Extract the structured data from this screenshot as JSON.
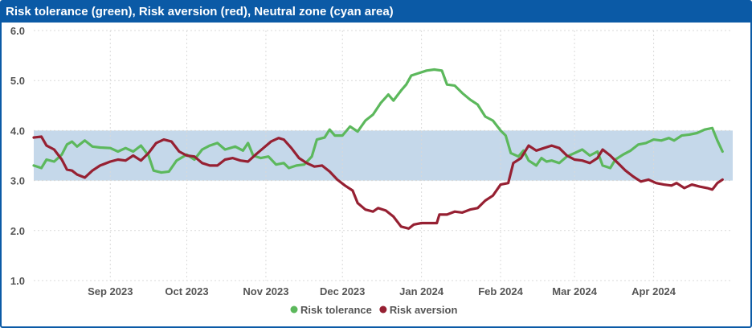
{
  "chart_data": {
    "type": "line",
    "title": "Risk tolerance (green), Risk aversion (red), Neutral zone (cyan area)",
    "ylim": [
      1.0,
      6.0
    ],
    "yticks": [
      "1.0",
      "2.0",
      "3.0",
      "4.0",
      "5.0",
      "6.0"
    ],
    "xlim": [
      "2023-08-02",
      "2024-05-02"
    ],
    "xticks": [
      {
        "date": "2023-09-01",
        "label": "Sep 2023"
      },
      {
        "date": "2023-10-01",
        "label": "Oct 2023"
      },
      {
        "date": "2023-11-01",
        "label": "Nov 2023"
      },
      {
        "date": "2023-12-01",
        "label": "Dec 2023"
      },
      {
        "date": "2024-01-01",
        "label": "Jan 2024"
      },
      {
        "date": "2024-02-01",
        "label": "Feb 2024"
      },
      {
        "date": "2024-03-01",
        "label": "Mar 2024"
      },
      {
        "date": "2024-04-01",
        "label": "Apr 2024"
      }
    ],
    "band": {
      "from": 3.0,
      "to": 4.0,
      "color": "#c5d8ea"
    },
    "grid": true,
    "legend": "bottom-center",
    "series": [
      {
        "name": "Risk tolerance",
        "color": "#5cb85c",
        "points": [
          [
            "2023-08-02",
            3.3
          ],
          [
            "2023-08-05",
            3.25
          ],
          [
            "2023-08-07",
            3.42
          ],
          [
            "2023-08-10",
            3.38
          ],
          [
            "2023-08-13",
            3.52
          ],
          [
            "2023-08-15",
            3.72
          ],
          [
            "2023-08-17",
            3.78
          ],
          [
            "2023-08-19",
            3.68
          ],
          [
            "2023-08-22",
            3.8
          ],
          [
            "2023-08-25",
            3.68
          ],
          [
            "2023-08-28",
            3.66
          ],
          [
            "2023-09-01",
            3.65
          ],
          [
            "2023-09-04",
            3.58
          ],
          [
            "2023-09-07",
            3.65
          ],
          [
            "2023-09-10",
            3.58
          ],
          [
            "2023-09-13",
            3.7
          ],
          [
            "2023-09-16",
            3.5
          ],
          [
            "2023-09-18",
            3.2
          ],
          [
            "2023-09-21",
            3.16
          ],
          [
            "2023-09-24",
            3.18
          ],
          [
            "2023-09-27",
            3.4
          ],
          [
            "2023-10-01",
            3.52
          ],
          [
            "2023-10-04",
            3.42
          ],
          [
            "2023-10-07",
            3.62
          ],
          [
            "2023-10-10",
            3.7
          ],
          [
            "2023-10-13",
            3.75
          ],
          [
            "2023-10-16",
            3.62
          ],
          [
            "2023-10-20",
            3.68
          ],
          [
            "2023-10-23",
            3.6
          ],
          [
            "2023-10-25",
            3.75
          ],
          [
            "2023-10-27",
            3.5
          ],
          [
            "2023-10-30",
            3.45
          ],
          [
            "2023-11-02",
            3.48
          ],
          [
            "2023-11-05",
            3.32
          ],
          [
            "2023-11-08",
            3.35
          ],
          [
            "2023-11-10",
            3.25
          ],
          [
            "2023-11-13",
            3.3
          ],
          [
            "2023-11-16",
            3.32
          ],
          [
            "2023-11-19",
            3.48
          ],
          [
            "2023-11-21",
            3.82
          ],
          [
            "2023-11-24",
            3.86
          ],
          [
            "2023-11-26",
            4.02
          ],
          [
            "2023-11-28",
            3.9
          ],
          [
            "2023-12-01",
            3.9
          ],
          [
            "2023-12-04",
            4.08
          ],
          [
            "2023-12-07",
            3.98
          ],
          [
            "2023-12-10",
            4.2
          ],
          [
            "2023-12-13",
            4.32
          ],
          [
            "2023-12-16",
            4.55
          ],
          [
            "2023-12-19",
            4.72
          ],
          [
            "2023-12-21",
            4.6
          ],
          [
            "2023-12-24",
            4.8
          ],
          [
            "2023-12-26",
            4.92
          ],
          [
            "2023-12-28",
            5.1
          ],
          [
            "2023-12-31",
            5.15
          ],
          [
            "2024-01-03",
            5.2
          ],
          [
            "2024-01-06",
            5.22
          ],
          [
            "2024-01-09",
            5.2
          ],
          [
            "2024-01-11",
            4.92
          ],
          [
            "2024-01-14",
            4.9
          ],
          [
            "2024-01-17",
            4.75
          ],
          [
            "2024-01-20",
            4.62
          ],
          [
            "2024-01-23",
            4.52
          ],
          [
            "2024-01-26",
            4.28
          ],
          [
            "2024-01-29",
            4.2
          ],
          [
            "2024-02-01",
            4.0
          ],
          [
            "2024-02-03",
            3.9
          ],
          [
            "2024-02-05",
            3.55
          ],
          [
            "2024-02-08",
            3.48
          ],
          [
            "2024-02-10",
            3.6
          ],
          [
            "2024-02-12",
            3.4
          ],
          [
            "2024-02-15",
            3.3
          ],
          [
            "2024-02-17",
            3.45
          ],
          [
            "2024-02-19",
            3.38
          ],
          [
            "2024-02-21",
            3.4
          ],
          [
            "2024-02-24",
            3.35
          ],
          [
            "2024-02-27",
            3.48
          ],
          [
            "2024-03-01",
            3.55
          ],
          [
            "2024-03-04",
            3.62
          ],
          [
            "2024-03-07",
            3.5
          ],
          [
            "2024-03-10",
            3.58
          ],
          [
            "2024-03-12",
            3.3
          ],
          [
            "2024-03-15",
            3.25
          ],
          [
            "2024-03-17",
            3.42
          ],
          [
            "2024-03-20",
            3.52
          ],
          [
            "2024-03-23",
            3.6
          ],
          [
            "2024-03-26",
            3.72
          ],
          [
            "2024-03-29",
            3.75
          ],
          [
            "2024-04-01",
            3.82
          ],
          [
            "2024-04-04",
            3.8
          ],
          [
            "2024-04-07",
            3.85
          ],
          [
            "2024-04-09",
            3.8
          ],
          [
            "2024-04-12",
            3.9
          ],
          [
            "2024-04-15",
            3.92
          ],
          [
            "2024-04-18",
            3.95
          ],
          [
            "2024-04-21",
            4.02
          ],
          [
            "2024-04-24",
            4.05
          ],
          [
            "2024-04-26",
            3.8
          ],
          [
            "2024-04-28",
            3.58
          ]
        ]
      },
      {
        "name": "Risk aversion",
        "color": "#962032",
        "points": [
          [
            "2023-08-02",
            3.86
          ],
          [
            "2023-08-05",
            3.88
          ],
          [
            "2023-08-07",
            3.7
          ],
          [
            "2023-08-10",
            3.62
          ],
          [
            "2023-08-13",
            3.42
          ],
          [
            "2023-08-15",
            3.22
          ],
          [
            "2023-08-17",
            3.2
          ],
          [
            "2023-08-19",
            3.12
          ],
          [
            "2023-08-22",
            3.06
          ],
          [
            "2023-08-25",
            3.2
          ],
          [
            "2023-08-28",
            3.3
          ],
          [
            "2023-09-01",
            3.38
          ],
          [
            "2023-09-04",
            3.42
          ],
          [
            "2023-09-07",
            3.4
          ],
          [
            "2023-09-10",
            3.5
          ],
          [
            "2023-09-13",
            3.4
          ],
          [
            "2023-09-16",
            3.55
          ],
          [
            "2023-09-19",
            3.75
          ],
          [
            "2023-09-22",
            3.82
          ],
          [
            "2023-09-25",
            3.78
          ],
          [
            "2023-09-28",
            3.58
          ],
          [
            "2023-10-01",
            3.5
          ],
          [
            "2023-10-04",
            3.48
          ],
          [
            "2023-10-07",
            3.35
          ],
          [
            "2023-10-10",
            3.3
          ],
          [
            "2023-10-13",
            3.3
          ],
          [
            "2023-10-16",
            3.42
          ],
          [
            "2023-10-19",
            3.45
          ],
          [
            "2023-10-22",
            3.4
          ],
          [
            "2023-10-25",
            3.38
          ],
          [
            "2023-10-28",
            3.52
          ],
          [
            "2023-10-31",
            3.65
          ],
          [
            "2023-11-03",
            3.78
          ],
          [
            "2023-11-06",
            3.85
          ],
          [
            "2023-11-08",
            3.82
          ],
          [
            "2023-11-11",
            3.65
          ],
          [
            "2023-11-14",
            3.45
          ],
          [
            "2023-11-17",
            3.35
          ],
          [
            "2023-11-20",
            3.28
          ],
          [
            "2023-11-23",
            3.3
          ],
          [
            "2023-11-26",
            3.18
          ],
          [
            "2023-11-29",
            3.02
          ],
          [
            "2023-12-02",
            2.9
          ],
          [
            "2023-12-05",
            2.8
          ],
          [
            "2023-12-07",
            2.55
          ],
          [
            "2023-12-10",
            2.42
          ],
          [
            "2023-12-13",
            2.38
          ],
          [
            "2023-12-15",
            2.45
          ],
          [
            "2023-12-18",
            2.4
          ],
          [
            "2023-12-21",
            2.28
          ],
          [
            "2023-12-24",
            2.08
          ],
          [
            "2023-12-27",
            2.04
          ],
          [
            "2023-12-29",
            2.12
          ],
          [
            "2024-01-01",
            2.15
          ],
          [
            "2024-01-04",
            2.15
          ],
          [
            "2024-01-07",
            2.15
          ],
          [
            "2024-01-08",
            2.32
          ],
          [
            "2024-01-11",
            2.32
          ],
          [
            "2024-01-14",
            2.38
          ],
          [
            "2024-01-17",
            2.36
          ],
          [
            "2024-01-20",
            2.42
          ],
          [
            "2024-01-23",
            2.45
          ],
          [
            "2024-01-26",
            2.6
          ],
          [
            "2024-01-29",
            2.7
          ],
          [
            "2024-02-01",
            2.92
          ],
          [
            "2024-02-04",
            2.95
          ],
          [
            "2024-02-06",
            3.35
          ],
          [
            "2024-02-09",
            3.45
          ],
          [
            "2024-02-12",
            3.7
          ],
          [
            "2024-02-15",
            3.6
          ],
          [
            "2024-02-18",
            3.65
          ],
          [
            "2024-02-21",
            3.7
          ],
          [
            "2024-02-24",
            3.65
          ],
          [
            "2024-02-27",
            3.5
          ],
          [
            "2024-03-01",
            3.42
          ],
          [
            "2024-03-04",
            3.4
          ],
          [
            "2024-03-07",
            3.35
          ],
          [
            "2024-03-10",
            3.45
          ],
          [
            "2024-03-12",
            3.62
          ],
          [
            "2024-03-15",
            3.5
          ],
          [
            "2024-03-18",
            3.35
          ],
          [
            "2024-03-21",
            3.2
          ],
          [
            "2024-03-24",
            3.08
          ],
          [
            "2024-03-27",
            2.98
          ],
          [
            "2024-03-30",
            3.02
          ],
          [
            "2024-04-02",
            2.95
          ],
          [
            "2024-04-05",
            2.92
          ],
          [
            "2024-04-08",
            2.9
          ],
          [
            "2024-04-10",
            2.95
          ],
          [
            "2024-04-13",
            2.85
          ],
          [
            "2024-04-16",
            2.92
          ],
          [
            "2024-04-19",
            2.88
          ],
          [
            "2024-04-22",
            2.85
          ],
          [
            "2024-04-24",
            2.82
          ],
          [
            "2024-04-26",
            2.95
          ],
          [
            "2024-04-28",
            3.02
          ]
        ]
      }
    ]
  }
}
